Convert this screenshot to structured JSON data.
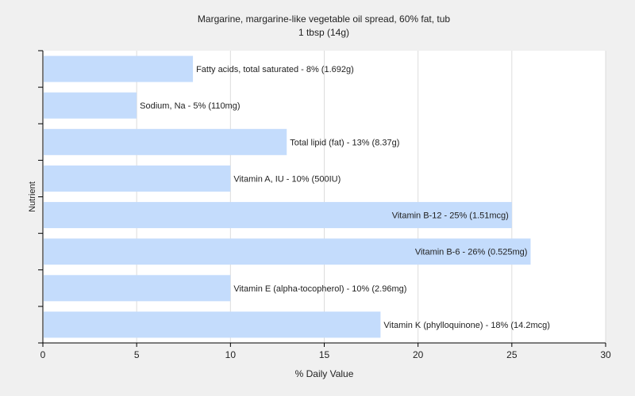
{
  "chart_data": {
    "type": "bar",
    "orientation": "horizontal",
    "title": "Margarine, margarine-like vegetable oil spread, 60% fat, tub",
    "subtitle": "1 tbsp (14g)",
    "xlabel": "% Daily Value",
    "ylabel": "Nutrient",
    "xlim": [
      0,
      30
    ],
    "xticks": [
      0,
      5,
      10,
      15,
      20,
      25,
      30
    ],
    "grid": true,
    "colors": {
      "bar": "#c4dcfc",
      "background": "#f0f0f0",
      "plot": "#ffffff",
      "grid": "#dcdcdc",
      "axis": "#000000"
    },
    "categories": [
      "Fatty acids, total saturated",
      "Sodium, Na",
      "Total lipid (fat)",
      "Vitamin A, IU",
      "Vitamin B-12",
      "Vitamin B-6",
      "Vitamin E (alpha-tocopherol)",
      "Vitamin K (phylloquinone)"
    ],
    "values": [
      8,
      5,
      13,
      10,
      25,
      26,
      10,
      18
    ],
    "labels": [
      "Fatty acids, total saturated - 8% (1.692g)",
      "Sodium, Na - 5% (110mg)",
      "Total lipid (fat) - 13% (8.37g)",
      "Vitamin A, IU - 10% (500IU)",
      "Vitamin B-12 - 25% (1.51mcg)",
      "Vitamin B-6 - 26% (0.525mg)",
      "Vitamin E (alpha-tocopherol) - 10% (2.96mg)",
      "Vitamin K (phylloquinone) - 18% (14.2mcg)"
    ]
  }
}
